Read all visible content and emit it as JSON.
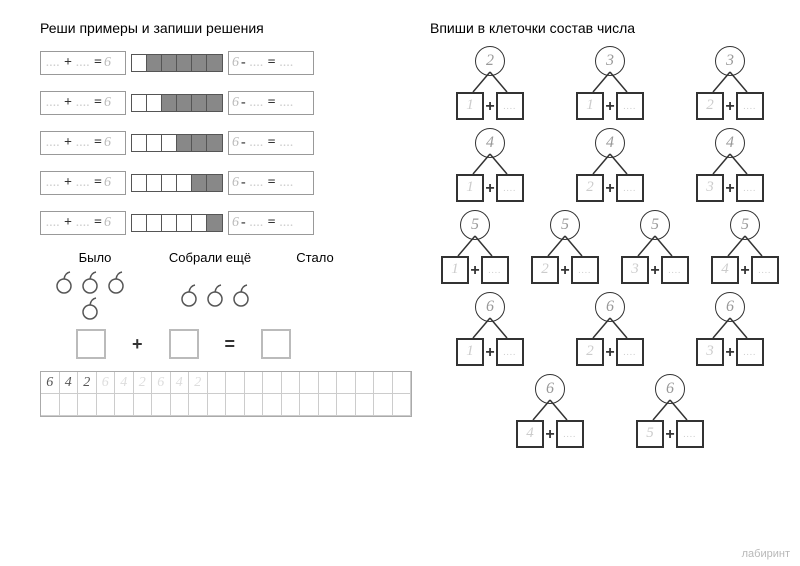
{
  "headers": {
    "left": "Реши примеры и запиши решения",
    "right": "Впиши в клеточки состав числа"
  },
  "eq_rows": [
    {
      "filled_from": 1
    },
    {
      "filled_from": 2
    },
    {
      "filled_from": 3
    },
    {
      "filled_from": 4
    },
    {
      "filled_from": 5
    }
  ],
  "eq_template": {
    "result": "6",
    "plus": "+",
    "minus": "-",
    "eq": "=",
    "dots": "...."
  },
  "word_problem": {
    "labels": [
      "Было",
      "Собрали ещё",
      "Стало"
    ],
    "group1_count": 4,
    "group2_count": 3,
    "plus": "+",
    "eq": "="
  },
  "writing": {
    "pattern": [
      "6",
      "4",
      "2",
      "6",
      "4",
      "2",
      "6",
      "4",
      "2"
    ],
    "dark_count": 3
  },
  "number_bonds": [
    [
      {
        "n": "2",
        "a": "1"
      },
      {
        "n": "3",
        "a": "1"
      },
      {
        "n": "3",
        "a": "2"
      }
    ],
    [
      {
        "n": "4",
        "a": "1"
      },
      {
        "n": "4",
        "a": "2"
      },
      {
        "n": "4",
        "a": "3"
      }
    ],
    [
      {
        "n": "5",
        "a": "1"
      },
      {
        "n": "5",
        "a": "2"
      },
      {
        "n": "5",
        "a": "3"
      },
      {
        "n": "5",
        "a": "4"
      }
    ],
    [
      {
        "n": "6",
        "a": "1"
      },
      {
        "n": "6",
        "a": "2"
      },
      {
        "n": "6",
        "a": "3"
      }
    ],
    [
      {
        "n": "6",
        "a": "4"
      },
      {
        "n": "6",
        "a": "5"
      }
    ]
  ],
  "watermark": "лабиринт"
}
